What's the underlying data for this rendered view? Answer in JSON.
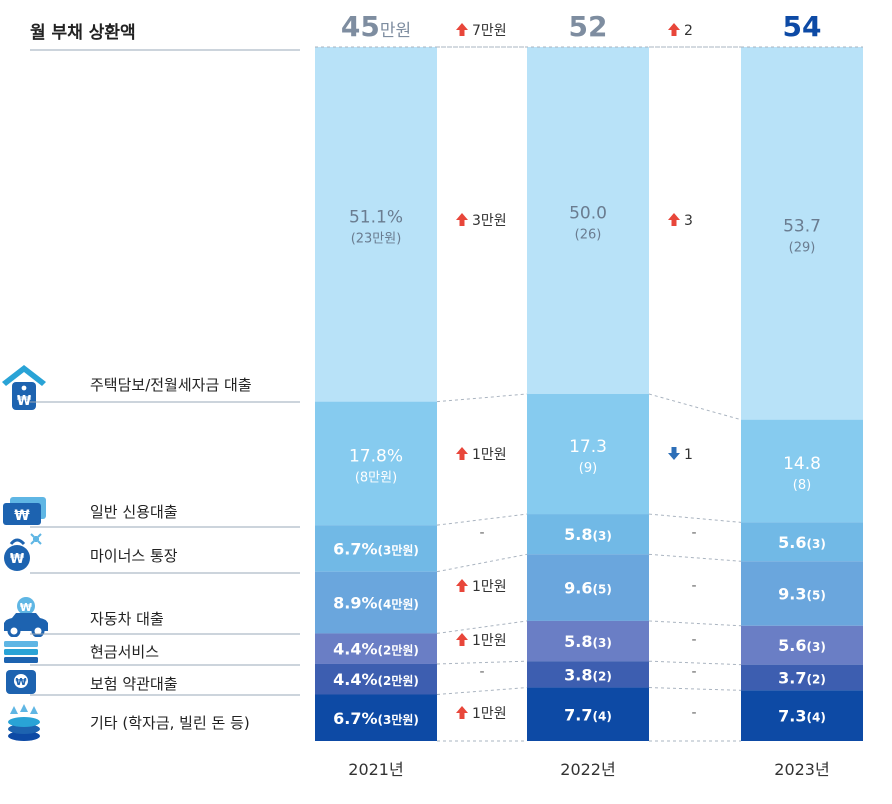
{
  "title": "월 부채 상환액",
  "colors": {
    "housing": "#b8e2f8",
    "credit": "#86cbef",
    "overdraft": "#71b9e6",
    "auto": "#6aa6dd",
    "cash": "#6a7ec5",
    "insurance": "#3d5eb0",
    "other": "#0d4aa5",
    "up_arrow": "#e8463a",
    "down_arrow": "#2d6fb8",
    "total_gray": "#7e8da0",
    "total_highlight": "#0d4aa5"
  },
  "categories": [
    {
      "key": "housing",
      "label": "주택담보/전월세자금 대출",
      "icon": "house-icon"
    },
    {
      "key": "credit",
      "label": "일반 신용대출",
      "icon": "card-icon"
    },
    {
      "key": "overdraft",
      "label": "마이너스 통장",
      "icon": "bag-icon"
    },
    {
      "key": "auto",
      "label": "자동차 대출",
      "icon": "car-icon"
    },
    {
      "key": "cash",
      "label": "현금서비스",
      "icon": "cash-stack-icon"
    },
    {
      "key": "insurance",
      "label": "보험 약관대출",
      "icon": "insurance-icon"
    },
    {
      "key": "other",
      "label": "기타 (학자금, 빌린 돈 등)",
      "icon": "coins-icon"
    }
  ],
  "chart_data": {
    "type": "bar",
    "stacked": true,
    "unit": "만원",
    "years": [
      "2021년",
      "2022년",
      "2023년"
    ],
    "totals": [
      {
        "num": "45",
        "unit": "만원"
      },
      {
        "num": "52",
        "unit": ""
      },
      {
        "num": "54",
        "unit": ""
      }
    ],
    "total_changes": [
      {
        "dir": "up",
        "text": "7만원"
      },
      {
        "dir": "up",
        "text": "2"
      }
    ],
    "series": [
      {
        "key": "housing",
        "values": [
          51.1,
          50.0,
          53.7
        ],
        "pct": [
          "51.1%",
          "50.0",
          "53.7"
        ],
        "amt": [
          "(23만원)",
          "(26)",
          "(29)"
        ],
        "changes": [
          {
            "dir": "up",
            "text": "3만원"
          },
          {
            "dir": "up",
            "text": "3"
          }
        ]
      },
      {
        "key": "credit",
        "values": [
          17.8,
          17.3,
          14.8
        ],
        "pct": [
          "17.8%",
          "17.3",
          "14.8"
        ],
        "amt": [
          "(8만원)",
          "(9)",
          "(8)"
        ],
        "changes": [
          {
            "dir": "up",
            "text": "1만원"
          },
          {
            "dir": "down",
            "text": "1"
          }
        ]
      },
      {
        "key": "overdraft",
        "values": [
          6.7,
          5.8,
          5.6
        ],
        "pct": [
          "6.7%",
          "5.8",
          "5.6"
        ],
        "amt": [
          "(3만원)",
          "(3)",
          "(3)"
        ],
        "changes": [
          {
            "dir": "none",
            "text": "-"
          },
          {
            "dir": "none",
            "text": "-"
          }
        ]
      },
      {
        "key": "auto",
        "values": [
          8.9,
          9.6,
          9.3
        ],
        "pct": [
          "8.9%",
          "9.6",
          "9.3"
        ],
        "amt": [
          "(4만원)",
          "(5)",
          "(5)"
        ],
        "changes": [
          {
            "dir": "up",
            "text": "1만원"
          },
          {
            "dir": "none",
            "text": "-"
          }
        ]
      },
      {
        "key": "cash",
        "values": [
          4.4,
          5.8,
          5.6
        ],
        "pct": [
          "4.4%",
          "5.8",
          "5.6"
        ],
        "amt": [
          "(2만원)",
          "(3)",
          "(3)"
        ],
        "changes": [
          {
            "dir": "up",
            "text": "1만원"
          },
          {
            "dir": "none",
            "text": "-"
          }
        ]
      },
      {
        "key": "insurance",
        "values": [
          4.4,
          3.8,
          3.7
        ],
        "pct": [
          "4.4%",
          "3.8",
          "3.7"
        ],
        "amt": [
          "(2만원)",
          "(2)",
          "(2)"
        ],
        "changes": [
          {
            "dir": "none",
            "text": "-"
          },
          {
            "dir": "none",
            "text": "-"
          }
        ]
      },
      {
        "key": "other",
        "values": [
          6.7,
          7.7,
          7.3
        ],
        "pct": [
          "6.7%",
          "7.7",
          "7.3"
        ],
        "amt": [
          "(3만원)",
          "(4)",
          "(4)"
        ],
        "changes": [
          {
            "dir": "up",
            "text": "1만원"
          },
          {
            "dir": "none",
            "text": "-"
          }
        ]
      }
    ]
  }
}
